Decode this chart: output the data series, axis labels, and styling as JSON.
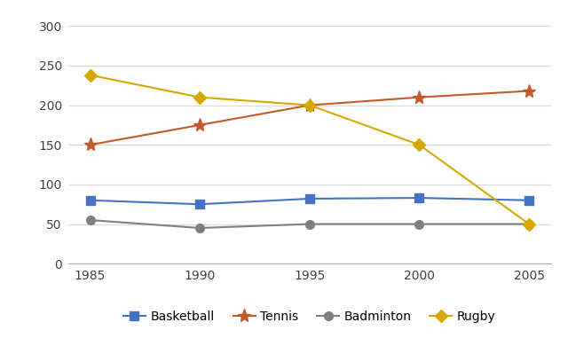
{
  "years": [
    1985,
    1990,
    1995,
    2000,
    2005
  ],
  "basketball": [
    80,
    75,
    82,
    83,
    80
  ],
  "tennis": [
    150,
    175,
    200,
    210,
    218
  ],
  "badminton": [
    55,
    45,
    50,
    50,
    50
  ],
  "rugby": [
    238,
    210,
    200,
    150,
    50
  ],
  "colors": {
    "basketball": "#4472C4",
    "tennis": "#C05A28",
    "badminton": "#7F7F7F",
    "rugby": "#D4A800"
  },
  "ylim": [
    0,
    320
  ],
  "yticks": [
    0,
    50,
    100,
    150,
    200,
    250,
    300
  ],
  "background_color": "#FFFFFF",
  "grid_color": "#D9D9D9",
  "figsize": [
    6.4,
    3.81
  ],
  "dpi": 100
}
